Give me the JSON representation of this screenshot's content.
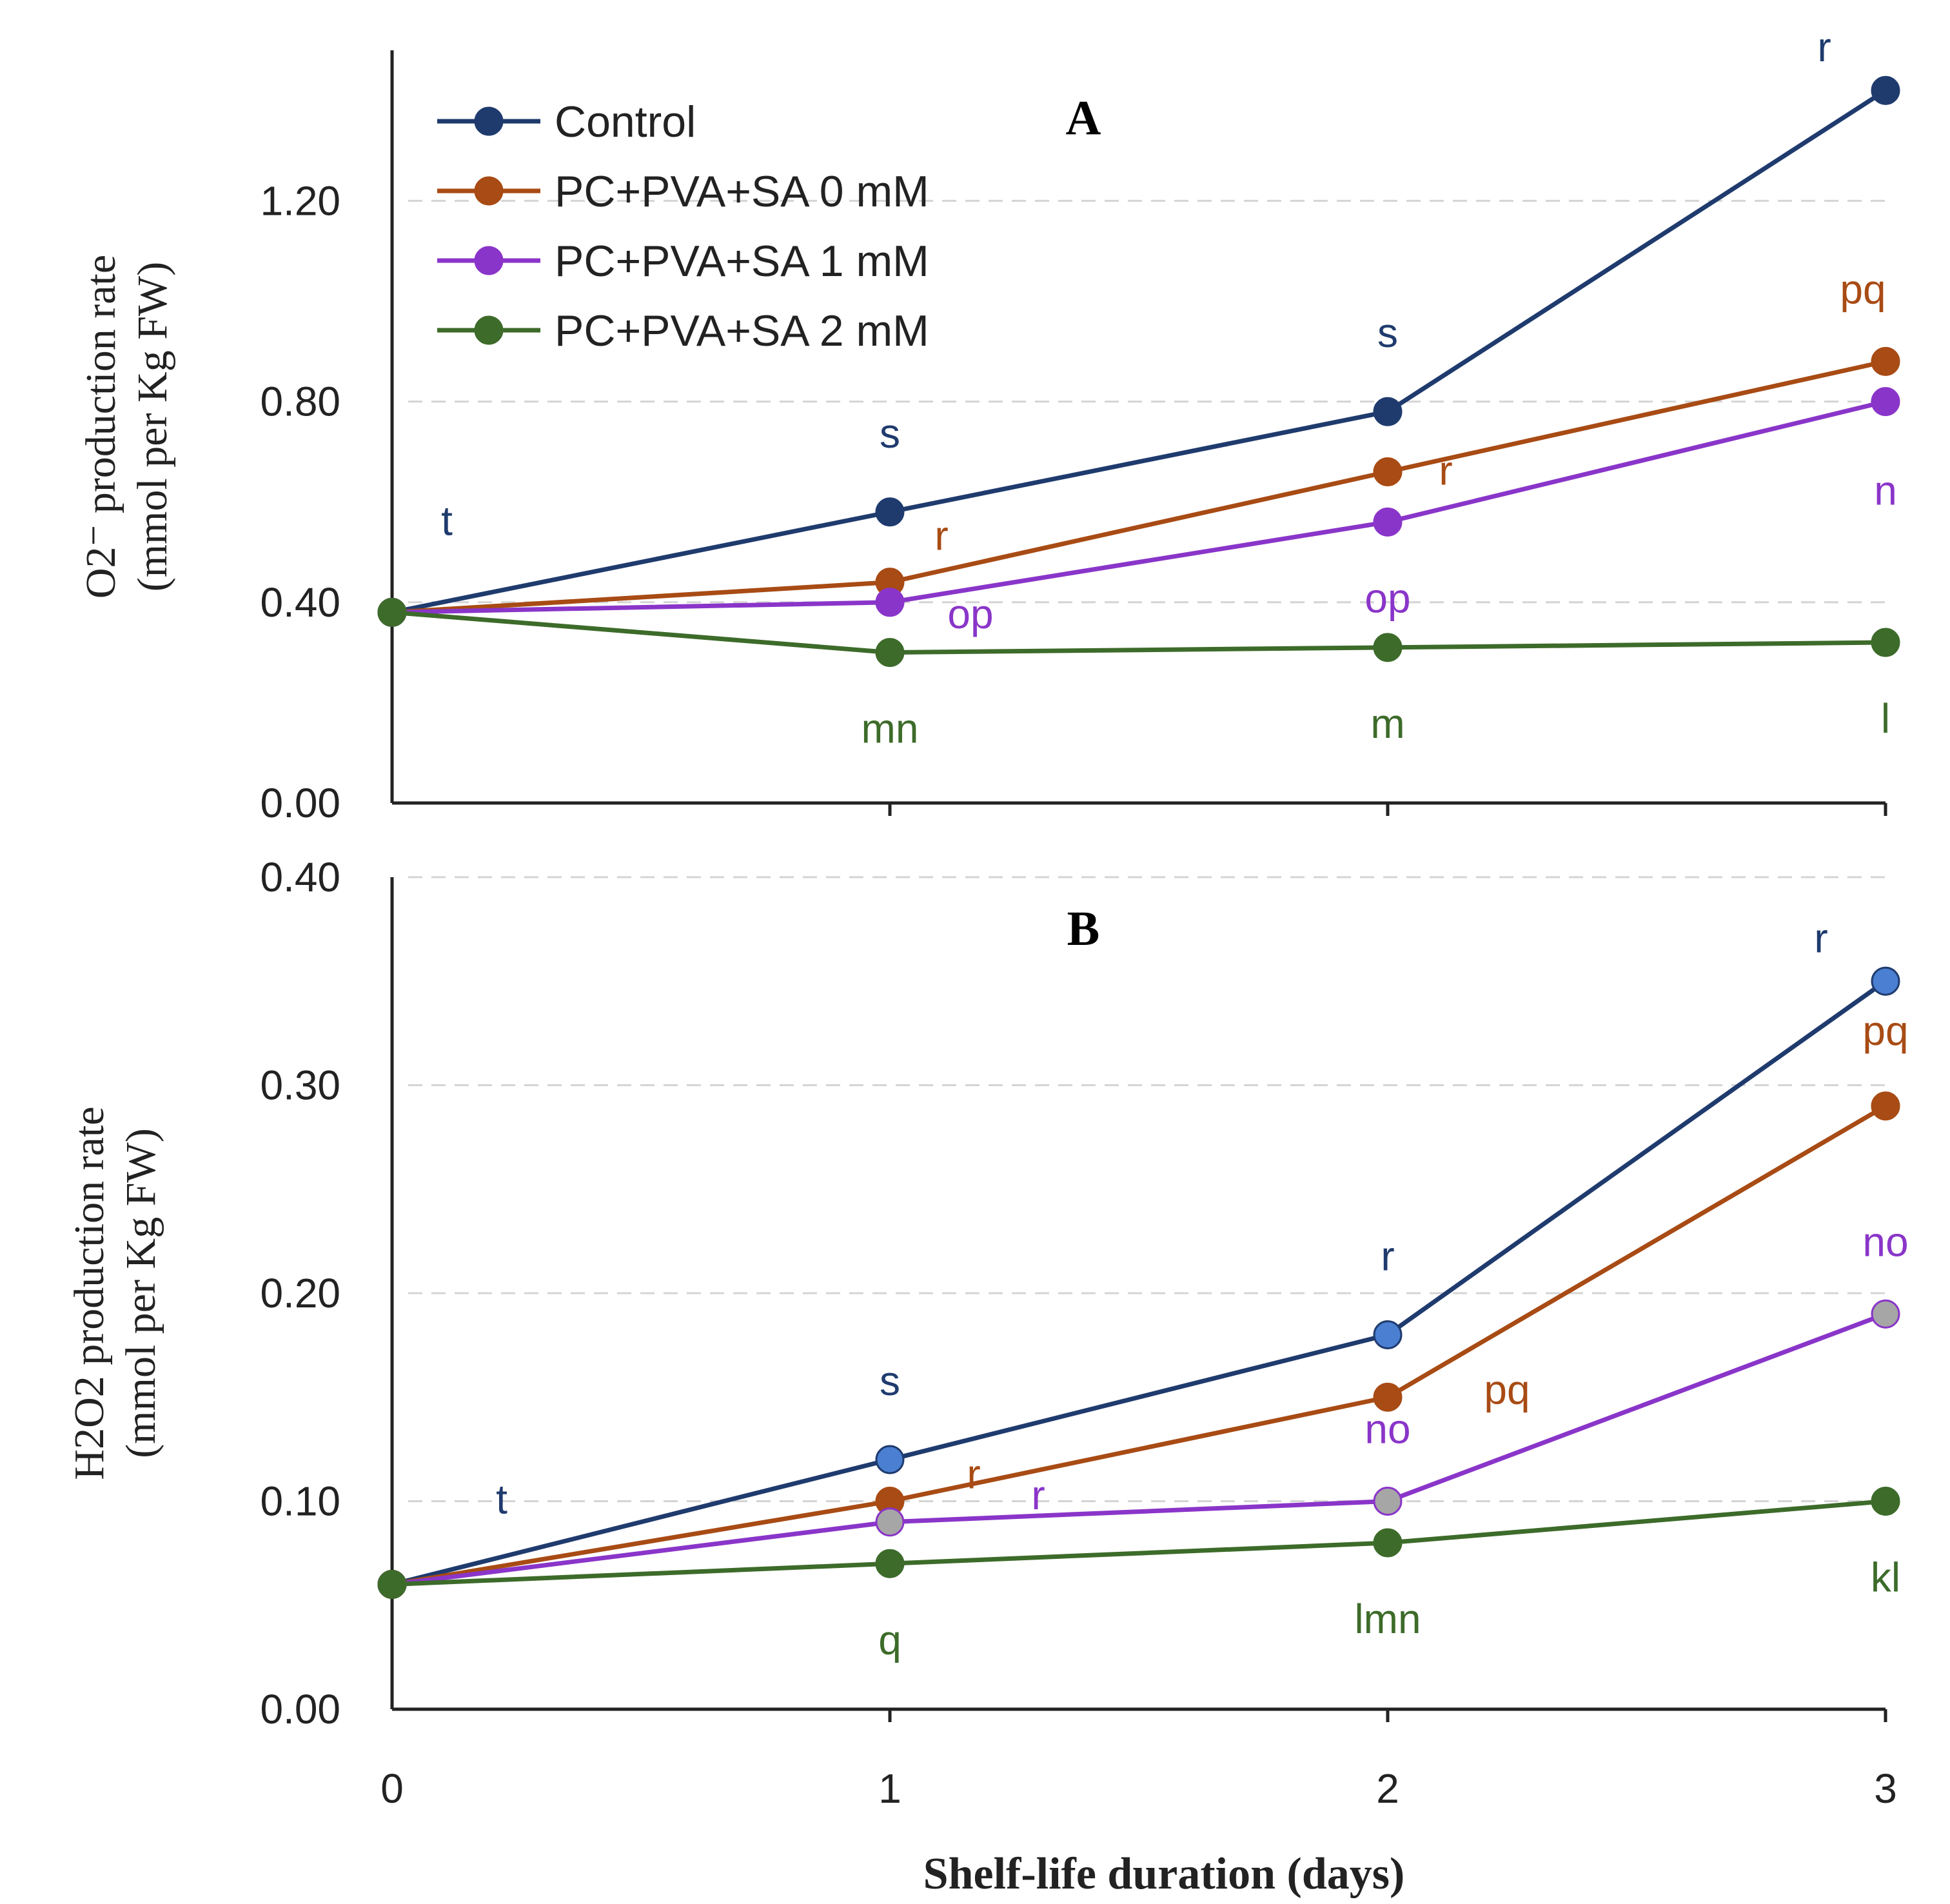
{
  "chart_data": [
    {
      "type": "line",
      "panel_label": "A",
      "ylabel_line1": "O2⁻ production rate",
      "ylabel_line2": "(mmol per Kg FW)",
      "ylim": [
        0,
        1.5
      ],
      "yticks": [
        "0.00",
        "0.40",
        "0.80",
        "1.20"
      ],
      "ytick_values": [
        0,
        0.4,
        0.8,
        1.2
      ],
      "x": [
        0,
        1,
        2,
        3
      ],
      "grid": "horizontal dashed",
      "legend_position": "top-left",
      "series": [
        {
          "name": "Control",
          "color": "#1f3b6e",
          "marker": "#1f3b6e",
          "values": [
            0.38,
            0.58,
            0.78,
            1.42
          ],
          "letters": [
            "t",
            "s",
            "s",
            "r"
          ]
        },
        {
          "name": "PC+PVA+SA 0 mM",
          "color": "#a84b14",
          "marker": "#a84b14",
          "values": [
            0.38,
            0.44,
            0.66,
            0.88
          ],
          "letters": [
            "",
            "r",
            "r",
            "pq"
          ]
        },
        {
          "name": "PC+PVA+SA 1 mM",
          "color": "#8a35c9",
          "marker": "#8a35c9",
          "values": [
            0.38,
            0.4,
            0.56,
            0.8
          ],
          "letters": [
            "",
            "op",
            "op",
            "n"
          ]
        },
        {
          "name": "PC+PVA+SA 2 mM",
          "color": "#3d6b2a",
          "marker": "#3d6b2a",
          "values": [
            0.38,
            0.3,
            0.31,
            0.32
          ],
          "letters": [
            "",
            "mn",
            "m",
            "l"
          ]
        }
      ]
    },
    {
      "type": "line",
      "panel_label": "B",
      "ylabel_line1": "H2O2 production rate",
      "ylabel_line2": "(mmol per Kg FW)",
      "ylim": [
        0,
        0.4
      ],
      "yticks": [
        "0.00",
        "0.10",
        "0.20",
        "0.30",
        "0.40"
      ],
      "ytick_values": [
        0,
        0.1,
        0.2,
        0.3,
        0.4
      ],
      "x": [
        0,
        1,
        2,
        3
      ],
      "xticks": [
        "0",
        "1",
        "2",
        "3"
      ],
      "xlabel": "Shelf-life duration (days)",
      "grid": "horizontal dashed",
      "series": [
        {
          "name": "Control",
          "color": "#1f3b6e",
          "marker": "#4a7fd1",
          "values": [
            0.06,
            0.12,
            0.18,
            0.35
          ],
          "letters": [
            "t",
            "s",
            "r",
            "r"
          ]
        },
        {
          "name": "PC+PVA+SA 0 mM",
          "color": "#a84b14",
          "marker": "#a84b14",
          "values": [
            0.06,
            0.1,
            0.15,
            0.29
          ],
          "letters": [
            "",
            "r",
            "pq",
            "pq"
          ]
        },
        {
          "name": "PC+PVA+SA 1 mM",
          "color": "#8a35c9",
          "marker": "#a6a6a6",
          "values": [
            0.06,
            0.09,
            0.1,
            0.19
          ],
          "letters": [
            "",
            "r",
            "no",
            "no"
          ]
        },
        {
          "name": "PC+PVA+SA 2 mM",
          "color": "#3d6b2a",
          "marker": "#3d6b2a",
          "values": [
            0.06,
            0.07,
            0.08,
            0.1
          ],
          "letters": [
            "",
            "q",
            "lmn",
            "kl"
          ]
        }
      ]
    }
  ]
}
